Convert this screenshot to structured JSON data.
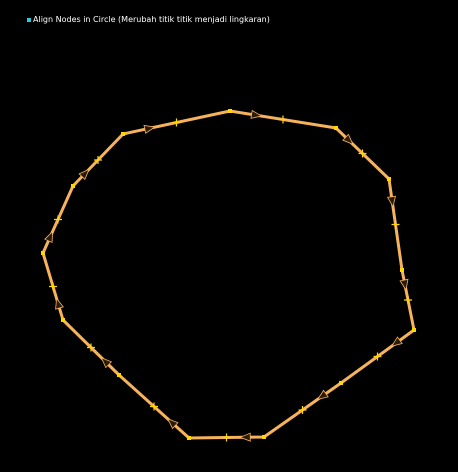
{
  "caption": {
    "text": "Align Nodes in Circle (Merubah titik titik menjadi lingkaran)",
    "bullet_icon": "square-bullet-icon",
    "bullet_color": "#2ec8d8"
  },
  "canvas": {
    "way_color": "#f7b25c",
    "node_color": "#ffd800",
    "arrow_color": "#2a1b0a",
    "node_count": 16,
    "midpoint_marker": "plus-icon",
    "direction_marker": "arrow-icon"
  }
}
